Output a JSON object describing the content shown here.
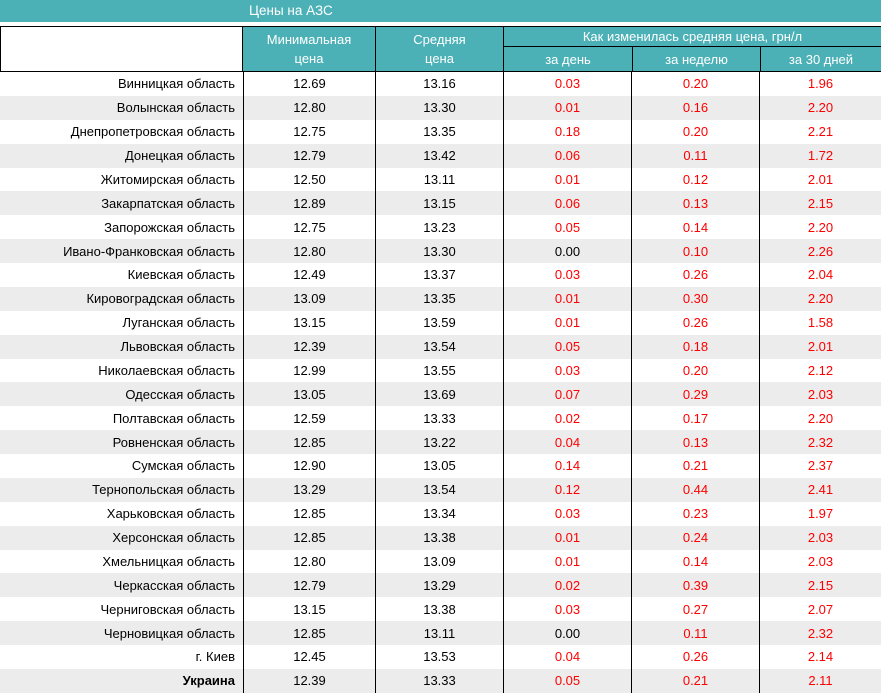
{
  "title": "Цены на АЗС",
  "colors": {
    "header_teal": "#4cb1b7",
    "stripe_gray": "#ececec",
    "change_red": "#ff0000",
    "value_black": "#000000",
    "header_text": "#ffffff"
  },
  "chart_data": {
    "type": "table",
    "title": "Цены на АЗС",
    "header": {
      "min_line1": "Минимальная",
      "min_line2": "цена",
      "avg_line1": "Средняя",
      "avg_line2": "цена",
      "group": "Как изменилась средняя цена, грн/л",
      "sub": [
        "за день",
        "за неделю",
        "за 30 дней"
      ]
    },
    "value_rules": "change values rendered red; values equal to 0.00 rendered black; last row label bold",
    "rows": [
      {
        "region": "Винницкая область",
        "min": "12.69",
        "avg": "13.16",
        "day": "0.03",
        "week": "0.20",
        "month": "1.96"
      },
      {
        "region": "Волынская область",
        "min": "12.80",
        "avg": "13.30",
        "day": "0.01",
        "week": "0.16",
        "month": "2.20"
      },
      {
        "region": "Днепропетровская область",
        "min": "12.75",
        "avg": "13.35",
        "day": "0.18",
        "week": "0.20",
        "month": "2.21"
      },
      {
        "region": "Донецкая область",
        "min": "12.79",
        "avg": "13.42",
        "day": "0.06",
        "week": "0.11",
        "month": "1.72"
      },
      {
        "region": "Житомирская область",
        "min": "12.50",
        "avg": "13.11",
        "day": "0.01",
        "week": "0.12",
        "month": "2.01"
      },
      {
        "region": "Закарпатская область",
        "min": "12.89",
        "avg": "13.15",
        "day": "0.06",
        "week": "0.13",
        "month": "2.15"
      },
      {
        "region": "Запорожская область",
        "min": "12.75",
        "avg": "13.23",
        "day": "0.05",
        "week": "0.14",
        "month": "2.20"
      },
      {
        "region": "Ивано-Франковская область",
        "min": "12.80",
        "avg": "13.30",
        "day": "0.00",
        "week": "0.10",
        "month": "2.26"
      },
      {
        "region": "Киевская область",
        "min": "12.49",
        "avg": "13.37",
        "day": "0.03",
        "week": "0.26",
        "month": "2.04"
      },
      {
        "region": "Кировоградская область",
        "min": "13.09",
        "avg": "13.35",
        "day": "0.01",
        "week": "0.30",
        "month": "2.20"
      },
      {
        "region": "Луганская область",
        "min": "13.15",
        "avg": "13.59",
        "day": "0.01",
        "week": "0.26",
        "month": "1.58"
      },
      {
        "region": "Львовская область",
        "min": "12.39",
        "avg": "13.54",
        "day": "0.05",
        "week": "0.18",
        "month": "2.01"
      },
      {
        "region": "Николаевская область",
        "min": "12.99",
        "avg": "13.55",
        "day": "0.03",
        "week": "0.20",
        "month": "2.12"
      },
      {
        "region": "Одесская область",
        "min": "13.05",
        "avg": "13.69",
        "day": "0.07",
        "week": "0.29",
        "month": "2.03"
      },
      {
        "region": "Полтавская область",
        "min": "12.59",
        "avg": "13.33",
        "day": "0.02",
        "week": "0.17",
        "month": "2.20"
      },
      {
        "region": "Ровненская область",
        "min": "12.85",
        "avg": "13.22",
        "day": "0.04",
        "week": "0.13",
        "month": "2.32"
      },
      {
        "region": "Сумская область",
        "min": "12.90",
        "avg": "13.05",
        "day": "0.14",
        "week": "0.21",
        "month": "2.37"
      },
      {
        "region": "Тернопольская область",
        "min": "13.29",
        "avg": "13.54",
        "day": "0.12",
        "week": "0.44",
        "month": "2.41"
      },
      {
        "region": "Харьковская область",
        "min": "12.85",
        "avg": "13.34",
        "day": "0.03",
        "week": "0.23",
        "month": "1.97"
      },
      {
        "region": "Херсонская область",
        "min": "12.85",
        "avg": "13.38",
        "day": "0.01",
        "week": "0.24",
        "month": "2.03"
      },
      {
        "region": "Хмельницкая область",
        "min": "12.80",
        "avg": "13.09",
        "day": "0.01",
        "week": "0.14",
        "month": "2.03"
      },
      {
        "region": "Черкасская область",
        "min": "12.79",
        "avg": "13.29",
        "day": "0.02",
        "week": "0.39",
        "month": "2.15"
      },
      {
        "region": "Черниговская область",
        "min": "13.15",
        "avg": "13.38",
        "day": "0.03",
        "week": "0.27",
        "month": "2.07"
      },
      {
        "region": "Черновицкая область",
        "min": "12.85",
        "avg": "13.11",
        "day": "0.00",
        "week": "0.11",
        "month": "2.32"
      },
      {
        "region": "г. Киев",
        "min": "12.45",
        "avg": "13.53",
        "day": "0.04",
        "week": "0.26",
        "month": "2.14"
      },
      {
        "region": "Украина",
        "min": "12.39",
        "avg": "13.33",
        "day": "0.05",
        "week": "0.21",
        "month": "2.11",
        "bold": true
      }
    ]
  }
}
